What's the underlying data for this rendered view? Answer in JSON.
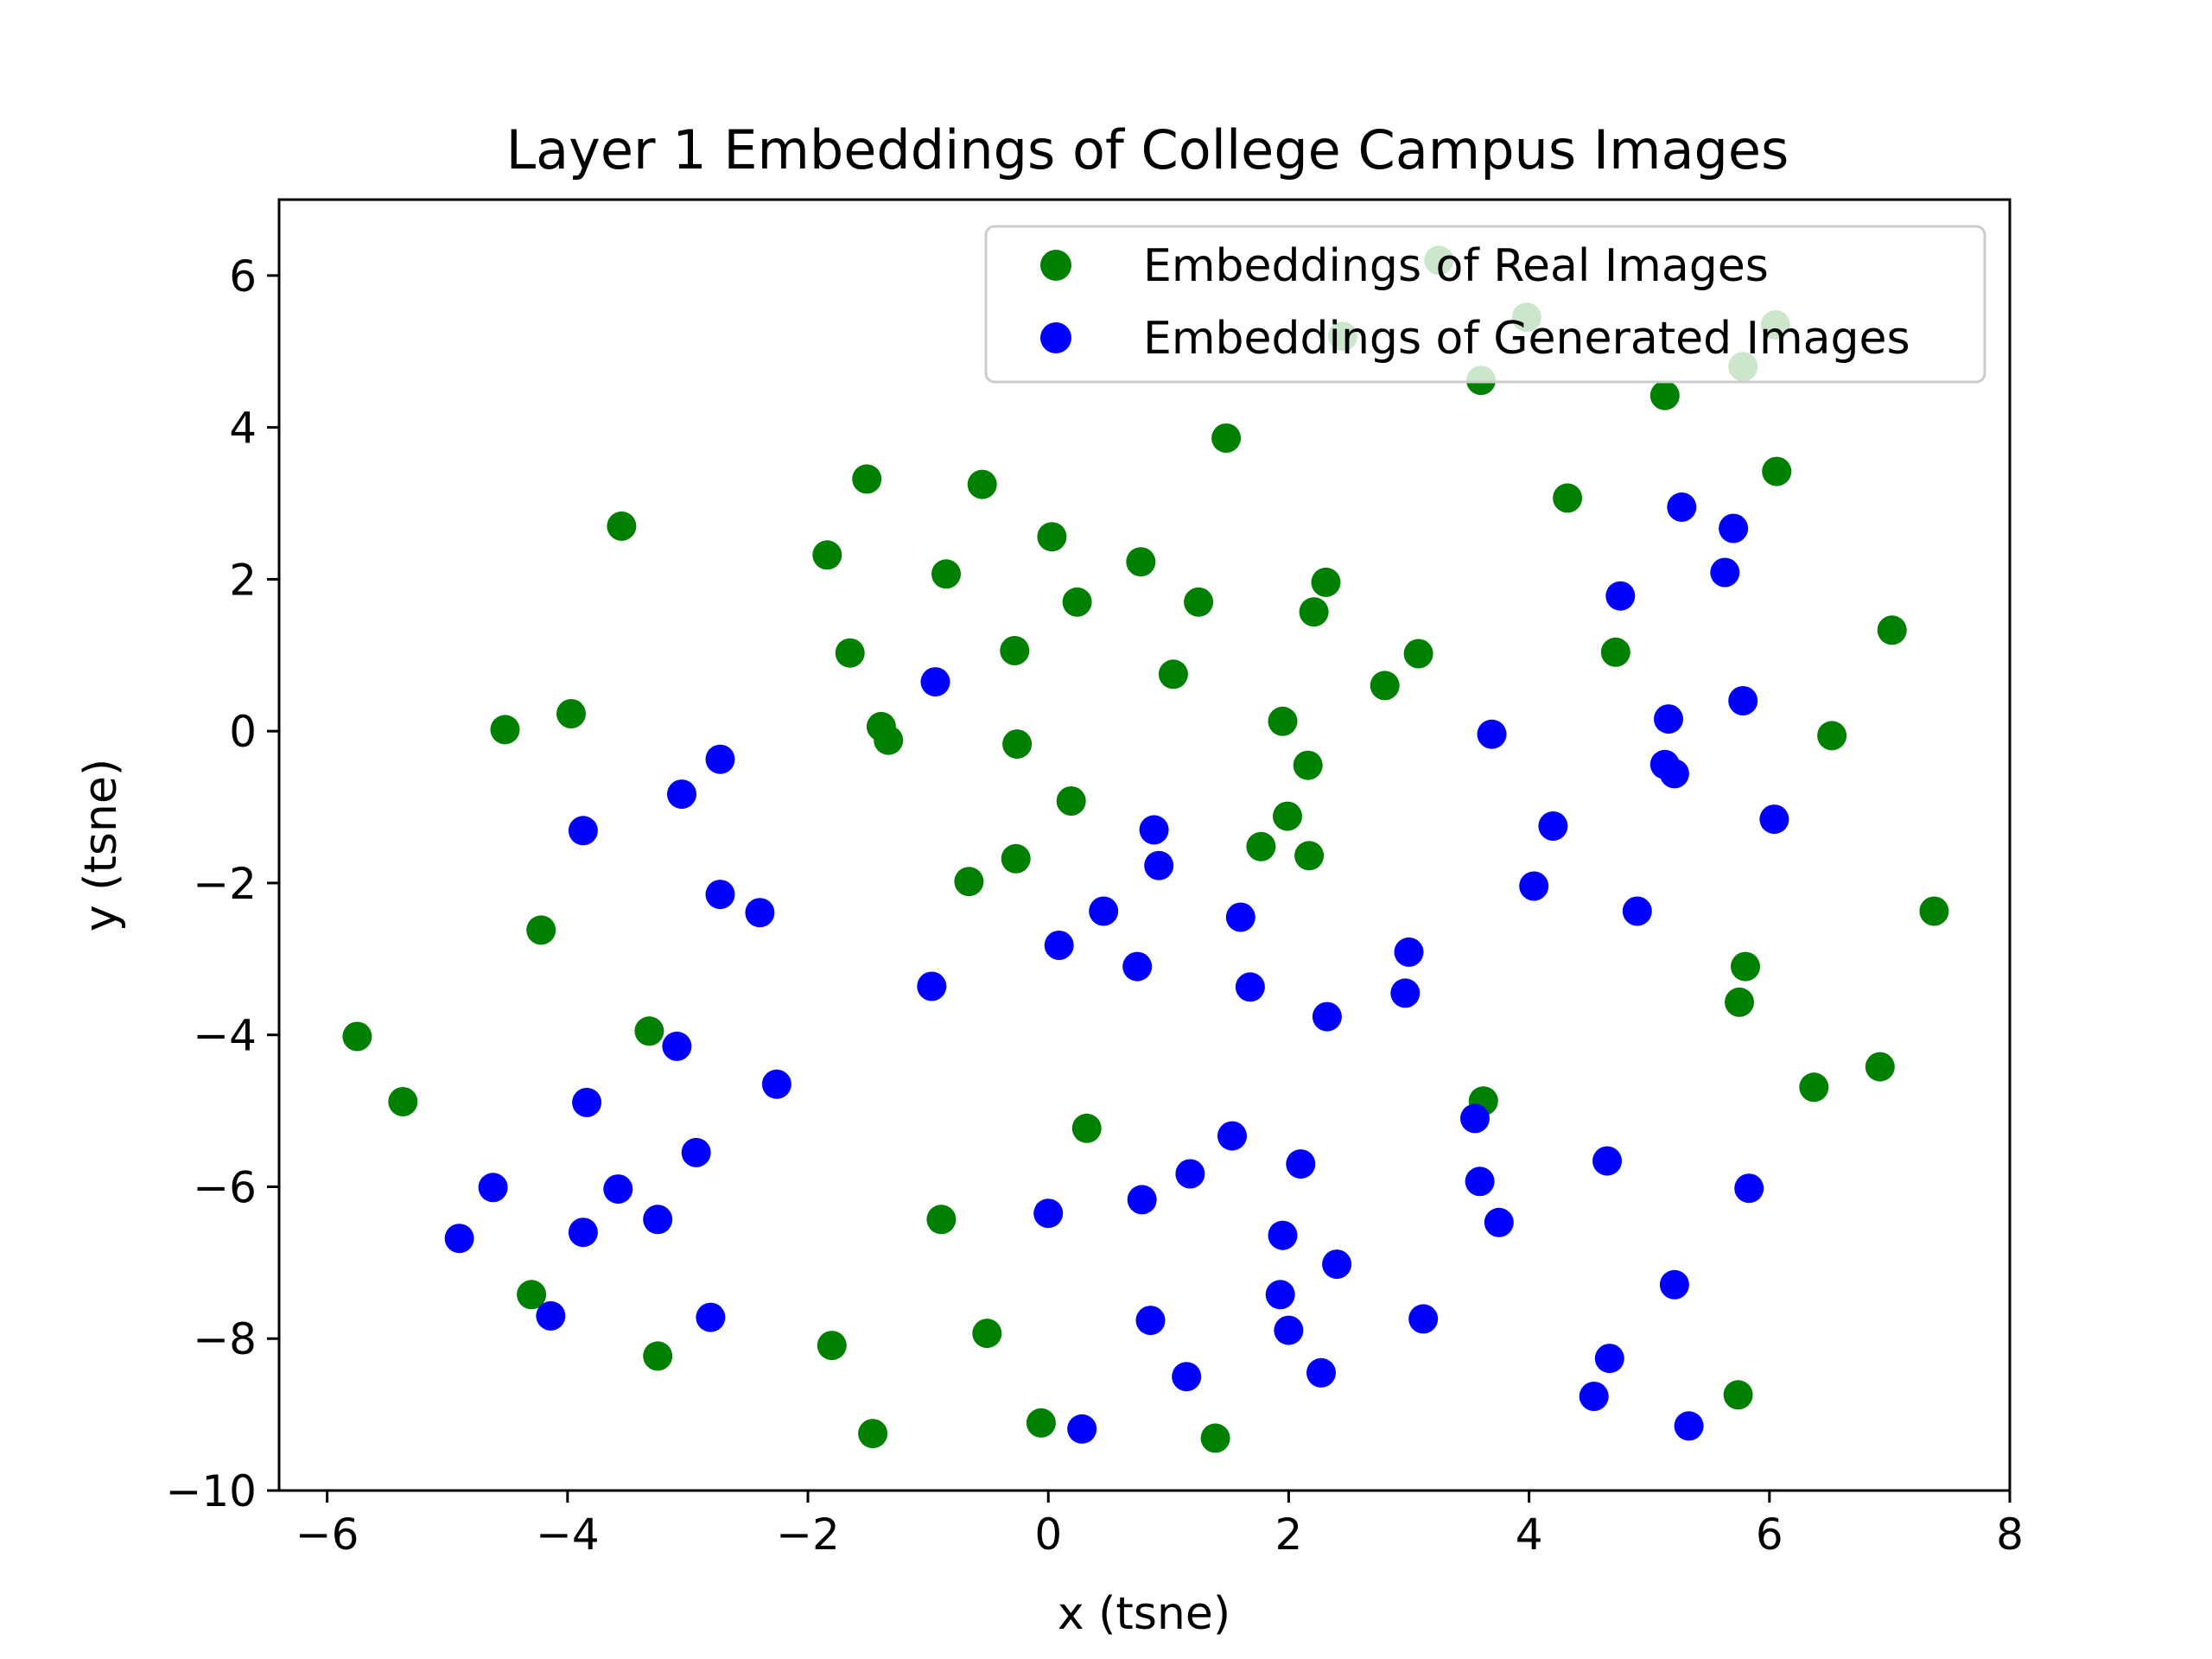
{
  "chart_data": {
    "type": "scatter",
    "title": "Layer 1 Embeddings of College Campus Images",
    "xlabel": "x (tsne)",
    "ylabel": "y (tsne)",
    "xlim": [
      -6.4,
      8.0
    ],
    "ylim": [
      -10.0,
      7.0
    ],
    "xticks": [
      -6,
      -4,
      -2,
      0,
      2,
      4,
      6,
      8
    ],
    "yticks": [
      -10,
      -8,
      -6,
      -4,
      -2,
      0,
      2,
      4,
      6
    ],
    "xtick_labels": [
      "−6",
      "−4",
      "−2",
      "0",
      "2",
      "4",
      "6",
      "8"
    ],
    "ytick_labels": [
      "−10",
      "−8",
      "−6",
      "−4",
      "−2",
      "0",
      "2",
      "4",
      "6"
    ],
    "grid": false,
    "legend_position": "upper right",
    "series": [
      {
        "name": "Embeddings of Real Images",
        "color": "#008000",
        "points": [
          [
            3.25,
            6.2
          ],
          [
            3.98,
            5.45
          ],
          [
            6.05,
            5.35
          ],
          [
            2.45,
            5.2
          ],
          [
            5.78,
            4.8
          ],
          [
            3.6,
            4.62
          ],
          [
            5.13,
            4.42
          ],
          [
            1.48,
            3.86
          ],
          [
            -1.51,
            3.32
          ],
          [
            -0.55,
            3.25
          ],
          [
            6.06,
            3.42
          ],
          [
            4.32,
            3.07
          ],
          [
            -3.55,
            2.7
          ],
          [
            -1.84,
            2.32
          ],
          [
            0.03,
            2.56
          ],
          [
            0.77,
            2.23
          ],
          [
            -0.85,
            2.07
          ],
          [
            2.31,
            1.96
          ],
          [
            0.24,
            1.7
          ],
          [
            1.25,
            1.7
          ],
          [
            2.21,
            1.57
          ],
          [
            -1.65,
            1.03
          ],
          [
            -0.28,
            1.06
          ],
          [
            3.08,
            1.02
          ],
          [
            4.72,
            1.04
          ],
          [
            7.02,
            1.33
          ],
          [
            1.04,
            0.75
          ],
          [
            2.8,
            0.6
          ],
          [
            -3.97,
            0.23
          ],
          [
            -4.52,
            0.02
          ],
          [
            -1.39,
            0.06
          ],
          [
            1.95,
            0.13
          ],
          [
            -1.33,
            -0.12
          ],
          [
            -0.26,
            -0.17
          ],
          [
            6.52,
            -0.06
          ],
          [
            2.16,
            -0.45
          ],
          [
            0.19,
            -0.92
          ],
          [
            1.99,
            -1.12
          ],
          [
            1.77,
            -1.52
          ],
          [
            2.17,
            -1.64
          ],
          [
            -0.27,
            -1.68
          ],
          [
            -0.66,
            -1.98
          ],
          [
            7.37,
            -2.37
          ],
          [
            -4.22,
            -2.62
          ],
          [
            5.8,
            -3.1
          ],
          [
            5.75,
            -3.57
          ],
          [
            -3.32,
            -3.95
          ],
          [
            -5.75,
            -4.02
          ],
          [
            6.92,
            -4.42
          ],
          [
            -5.37,
            -4.88
          ],
          [
            3.62,
            -4.87
          ],
          [
            6.37,
            -4.69
          ],
          [
            0.32,
            -5.23
          ],
          [
            -0.89,
            -6.43
          ],
          [
            -4.3,
            -7.42
          ],
          [
            -3.25,
            -8.23
          ],
          [
            -1.8,
            -8.09
          ],
          [
            -0.51,
            -7.93
          ],
          [
            5.74,
            -8.74
          ],
          [
            -1.46,
            -9.25
          ],
          [
            -0.06,
            -9.11
          ],
          [
            1.39,
            -9.31
          ]
        ]
      },
      {
        "name": "Embeddings of Generated Images",
        "color": "#0000ff",
        "points": [
          [
            5.27,
            2.95
          ],
          [
            5.7,
            2.67
          ],
          [
            4.76,
            1.78
          ],
          [
            5.63,
            2.09
          ],
          [
            -0.94,
            0.65
          ],
          [
            5.78,
            0.4
          ],
          [
            5.16,
            0.16
          ],
          [
            3.69,
            -0.04
          ],
          [
            5.13,
            -0.44
          ],
          [
            5.21,
            -0.56
          ],
          [
            -2.73,
            -0.37
          ],
          [
            -3.05,
            -0.83
          ],
          [
            -3.87,
            -1.31
          ],
          [
            6.04,
            -1.16
          ],
          [
            4.2,
            -1.25
          ],
          [
            0.88,
            -1.3
          ],
          [
            0.92,
            -1.77
          ],
          [
            -2.73,
            -2.15
          ],
          [
            -2.4,
            -2.39
          ],
          [
            4.04,
            -2.04
          ],
          [
            4.9,
            -2.37
          ],
          [
            0.46,
            -2.37
          ],
          [
            1.6,
            -2.45
          ],
          [
            0.09,
            -2.82
          ],
          [
            3.0,
            -2.91
          ],
          [
            0.74,
            -3.1
          ],
          [
            -0.97,
            -3.36
          ],
          [
            1.68,
            -3.37
          ],
          [
            2.97,
            -3.45
          ],
          [
            2.32,
            -3.76
          ],
          [
            -3.09,
            -4.15
          ],
          [
            -2.26,
            -4.65
          ],
          [
            -3.84,
            -4.89
          ],
          [
            3.55,
            -5.1
          ],
          [
            1.53,
            -5.33
          ],
          [
            -2.93,
            -5.55
          ],
          [
            2.1,
            -5.7
          ],
          [
            4.65,
            -5.66
          ],
          [
            1.18,
            -5.83
          ],
          [
            -4.62,
            -6.01
          ],
          [
            -3.58,
            -6.03
          ],
          [
            3.59,
            -5.93
          ],
          [
            5.83,
            -6.02
          ],
          [
            0.78,
            -6.17
          ],
          [
            0.0,
            -6.35
          ],
          [
            -3.25,
            -6.43
          ],
          [
            3.75,
            -6.47
          ],
          [
            1.95,
            -6.64
          ],
          [
            -4.9,
            -6.68
          ],
          [
            -3.87,
            -6.6
          ],
          [
            2.4,
            -7.02
          ],
          [
            5.21,
            -7.29
          ],
          [
            1.93,
            -7.42
          ],
          [
            -4.14,
            -7.7
          ],
          [
            -2.81,
            -7.72
          ],
          [
            0.85,
            -7.76
          ],
          [
            3.12,
            -7.74
          ],
          [
            2.0,
            -7.89
          ],
          [
            4.67,
            -8.26
          ],
          [
            2.27,
            -8.45
          ],
          [
            1.15,
            -8.5
          ],
          [
            4.54,
            -8.76
          ],
          [
            0.28,
            -9.19
          ],
          [
            5.33,
            -9.15
          ]
        ]
      }
    ]
  }
}
